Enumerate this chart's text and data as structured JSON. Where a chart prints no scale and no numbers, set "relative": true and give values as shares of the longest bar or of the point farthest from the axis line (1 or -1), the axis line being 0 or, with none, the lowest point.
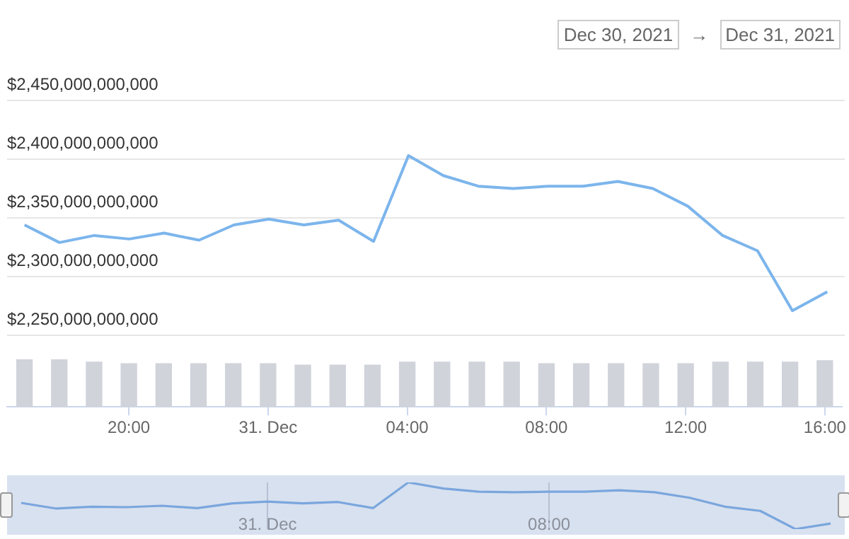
{
  "chart_data": [
    {
      "type": "line",
      "annotations": [
        "Dec 30, 2021",
        "→",
        "Dec 31, 2021"
      ],
      "categories": [
        null,
        null,
        null,
        null,
        null,
        null,
        null,
        null,
        null,
        null,
        null,
        null,
        null,
        null,
        null,
        null,
        null,
        null,
        null,
        null,
        null,
        null,
        null,
        null
      ],
      "series": [
        {
          "color": "#7cb5ec",
          "values": [
            2344000000000,
            2329000000000,
            2335000000000,
            2332000000000,
            2337000000000,
            2331000000000,
            2344000000000,
            2349000000000,
            2344000000000,
            2348000000000,
            2330000000000,
            2403000000000,
            2386000000000,
            2377000000000,
            2375000000000,
            2377000000000,
            2377000000000,
            2381000000000,
            2375000000000,
            2360000000000,
            2335000000000,
            2322000000000,
            2271000000000,
            2287000000000
          ]
        }
      ],
      "ylim": [
        2250000000000,
        2450000000000
      ],
      "yticks": [
        {
          "value": 2250000000000,
          "label": "$2,250,000,000,000"
        },
        {
          "value": 2300000000000,
          "label": "$2,300,000,000,000"
        },
        {
          "value": 2350000000000,
          "label": "$2,350,000,000,000"
        },
        {
          "value": 2400000000000,
          "label": "$2,400,000,000,000"
        },
        {
          "value": 2450000000000,
          "label": "$2,450,000,000,000"
        }
      ],
      "grid": "y",
      "marker": "none",
      "tick_labels": "y"
    },
    {
      "type": "bar",
      "relative": true,
      "categories": [
        null,
        null,
        null,
        "20:00",
        null,
        null,
        null,
        "31. Dec",
        null,
        null,
        null,
        "04:00",
        null,
        null,
        null,
        "08:00",
        null,
        null,
        null,
        "12:00",
        null,
        null,
        null,
        "16:00"
      ],
      "series": [
        {
          "color": "#d0d3da",
          "values": [
            1,
            1,
            0.94,
            0.91,
            0.91,
            0.91,
            0.91,
            0.91,
            0.88,
            0.88,
            0.88,
            0.94,
            0.94,
            0.94,
            0.94,
            0.91,
            0.91,
            0.91,
            0.91,
            0.91,
            0.94,
            0.94,
            0.94,
            0.97
          ]
        }
      ],
      "tick_labels": "x"
    },
    {
      "type": "line",
      "relative": true,
      "categories": [
        null,
        null,
        null,
        null,
        null,
        null,
        null,
        "31. Dec",
        null,
        null,
        null,
        null,
        null,
        null,
        null,
        "08:00",
        null,
        null,
        null,
        null,
        null,
        null,
        null,
        null
      ],
      "series": [
        {
          "color": "#7aa6dd",
          "values": [
            0.56,
            0.44,
            0.48,
            0.47,
            0.5,
            0.45,
            0.55,
            0.59,
            0.55,
            0.58,
            0.45,
            1,
            0.87,
            0.8,
            0.79,
            0.8,
            0.8,
            0.83,
            0.79,
            0.67,
            0.48,
            0.39,
            0,
            0.12
          ]
        }
      ],
      "grid": "x",
      "marker": "none",
      "tick_labels": "x"
    }
  ]
}
